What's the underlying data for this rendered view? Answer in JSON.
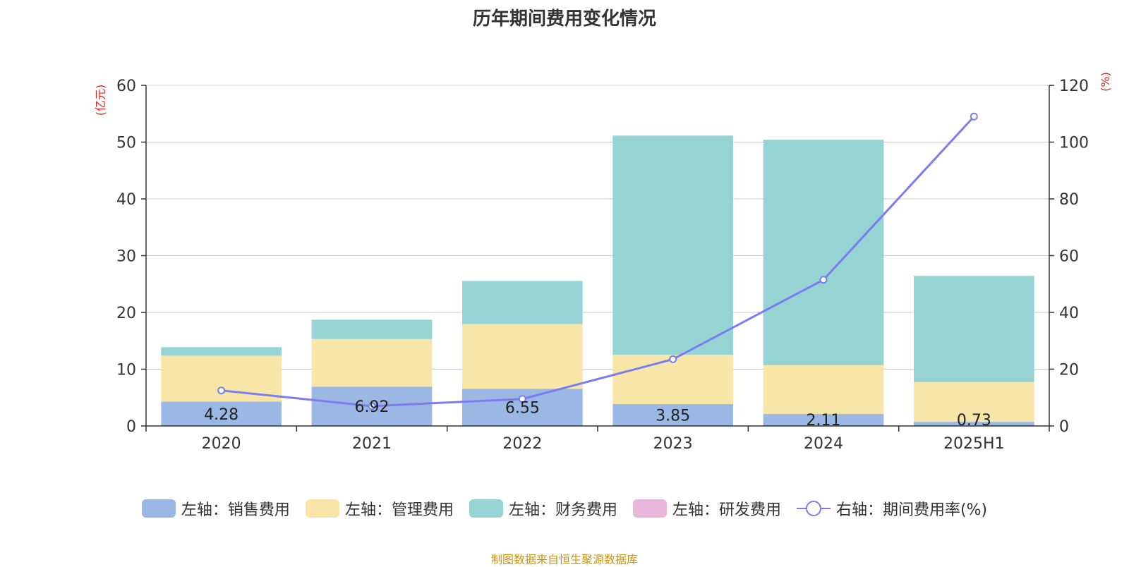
{
  "title": "历年期间费用变化情况",
  "source_note": "制图数据来自恒生聚源数据库",
  "left_axis_unit": "(亿元)",
  "right_axis_unit": "(%)",
  "legend": [
    {
      "label": "左轴：销售费用",
      "color": "#9bb7e3",
      "kind": "bar"
    },
    {
      "label": "左轴：管理费用",
      "color": "#f8e6a8",
      "kind": "bar"
    },
    {
      "label": "左轴：财务费用",
      "color": "#96d4d4",
      "kind": "bar"
    },
    {
      "label": "左轴：研发费用",
      "color": "#e8b7da",
      "kind": "bar"
    },
    {
      "label": "右轴：期间费用率(%)",
      "color": "#7b7cf0",
      "kind": "line"
    }
  ],
  "chart_data": {
    "type": "bar",
    "categories": [
      "2020",
      "2021",
      "2022",
      "2023",
      "2024",
      "2025H1"
    ],
    "ylim": [
      0,
      60
    ],
    "y_ticks": [
      0,
      10,
      20,
      30,
      40,
      50,
      60
    ],
    "y2lim": [
      0,
      120
    ],
    "y2_ticks": [
      0,
      20,
      40,
      60,
      80,
      100,
      120
    ],
    "grid": true,
    "legend_position": "bottom",
    "series": [
      {
        "name": "左轴：销售费用",
        "axis": "left",
        "type": "bar",
        "color": "#9bb7e3",
        "values": [
          4.28,
          6.92,
          6.55,
          3.85,
          2.11,
          0.73
        ],
        "labels": [
          "4.28",
          "6.92",
          "6.55",
          "3.85",
          "2.11",
          "0.73"
        ]
      },
      {
        "name": "左轴：管理费用",
        "axis": "left",
        "type": "bar",
        "color": "#f8e6a8",
        "values": [
          8.1,
          8.4,
          11.4,
          8.7,
          8.6,
          7.0
        ]
      },
      {
        "name": "左轴：财务费用",
        "axis": "left",
        "type": "bar",
        "color": "#96d4d4",
        "values": [
          1.5,
          3.4,
          7.6,
          38.6,
          39.7,
          18.7
        ]
      },
      {
        "name": "左轴：研发费用",
        "axis": "left",
        "type": "bar",
        "color": "#e8b7da",
        "values": [
          0,
          0,
          0,
          0,
          0,
          0
        ]
      },
      {
        "name": "右轴：期间费用率(%)",
        "axis": "right",
        "type": "line",
        "color": "#7b7cf0",
        "values": [
          12.5,
          7.0,
          9.5,
          23.5,
          51.5,
          109.0
        ]
      }
    ]
  }
}
